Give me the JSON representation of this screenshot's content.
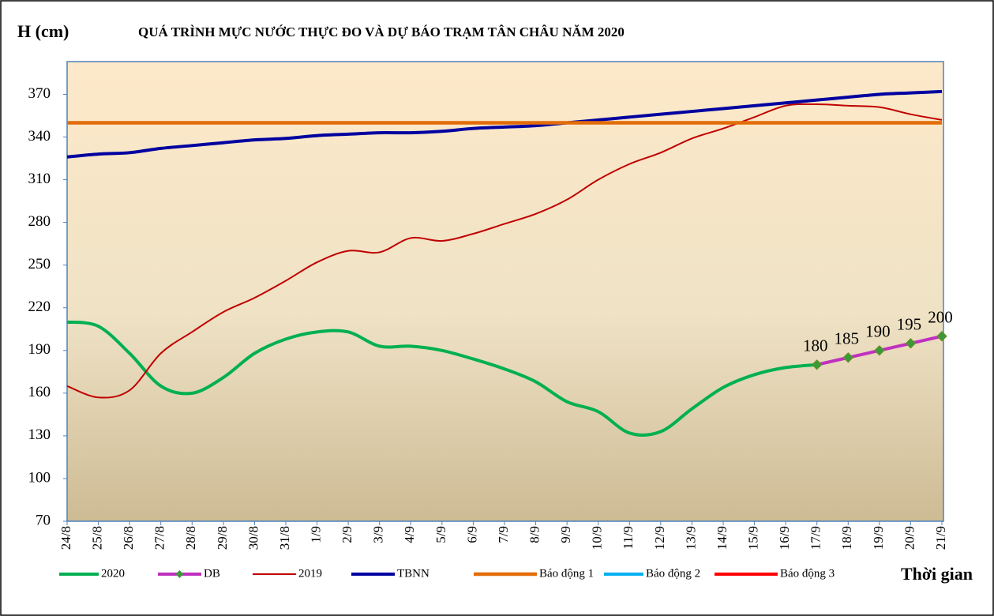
{
  "chart_data": {
    "type": "line",
    "title": "QUÁ TRÌNH MỰC NƯỚC THỰC ĐO VÀ DỰ BÁO TRẠM TÂN CHÂU NĂM 2020",
    "y_label": "H (cm)",
    "x_label": "Thời gian",
    "categories": [
      "24/8",
      "25/8",
      "26/8",
      "27/8",
      "28/8",
      "29/8",
      "30/8",
      "31/8",
      "1/9",
      "2/9",
      "3/9",
      "4/9",
      "5/9",
      "6/9",
      "7/9",
      "8/9",
      "9/9",
      "10/9",
      "11/9",
      "12/9",
      "13/9",
      "14/9",
      "15/9",
      "16/9",
      "17/9",
      "18/9",
      "19/9",
      "20/9",
      "21/9"
    ],
    "ylim": [
      70,
      393
    ],
    "yticks": [
      70,
      100,
      130,
      160,
      190,
      220,
      250,
      280,
      310,
      340,
      370
    ],
    "series": [
      {
        "name": "2020",
        "color": "#00b050",
        "values": [
          210,
          207,
          188,
          165,
          160,
          171,
          188,
          198,
          203,
          203,
          193,
          193,
          190,
          184,
          177,
          168,
          154,
          147,
          132,
          133,
          149,
          164,
          173,
          178,
          180,
          null,
          null,
          null,
          null
        ]
      },
      {
        "name": "DB",
        "color": "#c030c0",
        "marker_color": "#3a9a3a",
        "values": [
          null,
          null,
          null,
          null,
          null,
          null,
          null,
          null,
          null,
          null,
          null,
          null,
          null,
          null,
          null,
          null,
          null,
          null,
          null,
          null,
          null,
          null,
          null,
          null,
          180,
          185,
          190,
          195,
          200
        ]
      },
      {
        "name": "2019",
        "color": "#c00000",
        "values": [
          165,
          157,
          162,
          188,
          203,
          217,
          227,
          239,
          252,
          260,
          259,
          269,
          267,
          272,
          279,
          286,
          296,
          310,
          321,
          329,
          339,
          346,
          354,
          362,
          363,
          362,
          361,
          356,
          352
        ]
      },
      {
        "name": "TBNN",
        "color": "#0000a0",
        "values": [
          326,
          328,
          329,
          332,
          334,
          336,
          338,
          339,
          341,
          342,
          343,
          343,
          344,
          346,
          347,
          348,
          350,
          352,
          354,
          356,
          358,
          360,
          362,
          364,
          366,
          368,
          370,
          371,
          372
        ]
      },
      {
        "name": "Báo động 1",
        "color": "#e36c09",
        "values": [
          350,
          350,
          350,
          350,
          350,
          350,
          350,
          350,
          350,
          350,
          350,
          350,
          350,
          350,
          350,
          350,
          350,
          350,
          350,
          350,
          350,
          350,
          350,
          350,
          350,
          350,
          350,
          350,
          350
        ]
      },
      {
        "name": "Báo động 2",
        "color": "#00b0f0"
      },
      {
        "name": "Báo động 3",
        "color": "#ff0000"
      }
    ]
  }
}
